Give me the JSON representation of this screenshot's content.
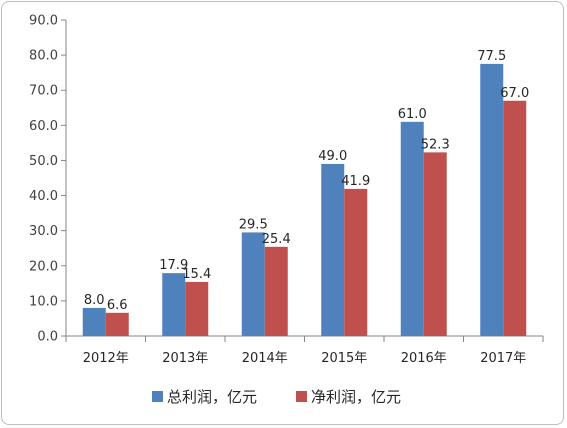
{
  "chart_data": {
    "type": "bar",
    "categories": [
      "2012年",
      "2013年",
      "2014年",
      "2015年",
      "2016年",
      "2017年"
    ],
    "series": [
      {
        "name": "总利润，亿元",
        "values": [
          8.0,
          17.9,
          29.5,
          49.0,
          61.0,
          77.5
        ],
        "color": "#4f81bd"
      },
      {
        "name": "净利润，亿元",
        "values": [
          6.6,
          15.4,
          25.4,
          41.9,
          52.3,
          67.0
        ],
        "color": "#c0504d"
      }
    ],
    "ylim": [
      0,
      90
    ],
    "yticks": [
      "0.0",
      "10.0",
      "20.0",
      "30.0",
      "40.0",
      "50.0",
      "60.0",
      "70.0",
      "80.0",
      "90.0"
    ],
    "value_labels": [
      [
        "8.0",
        "17.9",
        "29.5",
        "49.0",
        "61.0",
        "77.5"
      ],
      [
        "6.6",
        "15.4",
        "25.4",
        "41.9",
        "52.3",
        "67.0"
      ]
    ],
    "grid": false,
    "legend_position": "bottom"
  }
}
